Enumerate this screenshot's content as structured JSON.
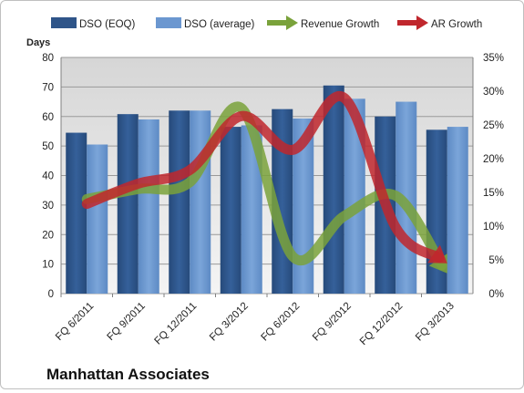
{
  "chart_data": {
    "type": "bar",
    "company_label": "Manhattan Associates",
    "y_left_title": "Days",
    "categories": [
      "FQ 6/2011",
      "FQ 9/2011",
      "FQ 12/2011",
      "FQ 3/2012",
      "FQ 6/2012",
      "FQ 9/2012",
      "FQ 12/2012",
      "FQ 3/2013"
    ],
    "y_left": {
      "min": 0,
      "max": 80,
      "ticks": [
        "0",
        "10",
        "20",
        "30",
        "40",
        "50",
        "60",
        "70",
        "80"
      ]
    },
    "y_right": {
      "min": 0,
      "max": 0.35,
      "ticks": [
        "0%",
        "5%",
        "10%",
        "15%",
        "20%",
        "25%",
        "30%",
        "35%"
      ]
    },
    "grid": "horizontal",
    "legend_position": "top",
    "series": [
      {
        "name": "DSO (EOQ)",
        "type": "bar",
        "axis": "left",
        "color": "#2f5589",
        "values": [
          54.5,
          60.8,
          62,
          56.5,
          62.5,
          70.5,
          60,
          55.5
        ]
      },
      {
        "name": "DSO (average)",
        "type": "bar",
        "axis": "left",
        "color": "#6b97d0",
        "values": [
          50.5,
          59,
          62,
          57,
          59.3,
          66,
          65,
          56.5
        ]
      },
      {
        "name": "Revenue Growth",
        "type": "line",
        "axis": "right",
        "color": "#7aa23b",
        "values": [
          0.14,
          0.155,
          0.165,
          0.275,
          0.055,
          0.115,
          0.145,
          0.03
        ]
      },
      {
        "name": "AR Growth",
        "type": "line",
        "axis": "right",
        "color": "#c0272d",
        "values": [
          0.133,
          0.163,
          0.183,
          0.263,
          0.213,
          0.29,
          0.098,
          0.045
        ]
      }
    ]
  }
}
